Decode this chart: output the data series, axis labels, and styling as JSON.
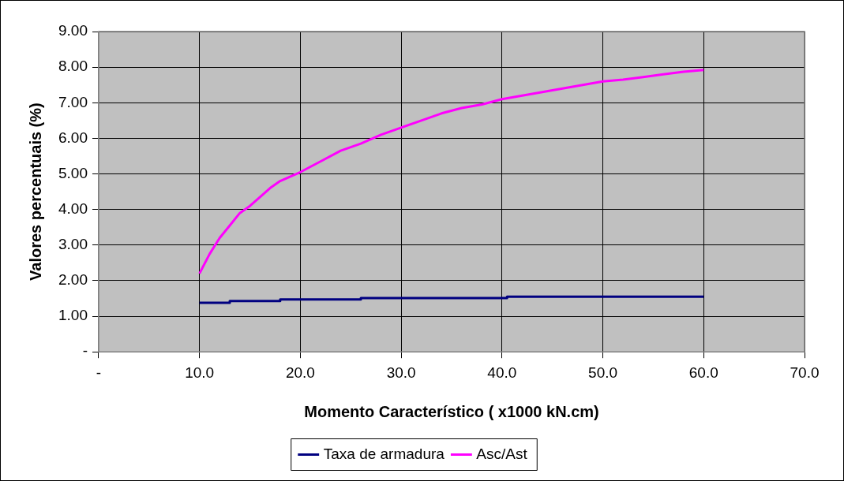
{
  "chart_data": {
    "type": "line",
    "xlabel": "Momento Característico ( x1000 kN.cm)",
    "ylabel": "Valores percentuais (%)",
    "xlim": [
      0,
      70
    ],
    "xticks": [
      {
        "value": 0,
        "label": "-"
      },
      {
        "value": 10,
        "label": "10.0"
      },
      {
        "value": 20,
        "label": "20.0"
      },
      {
        "value": 30,
        "label": "30.0"
      },
      {
        "value": 40,
        "label": "40.0"
      },
      {
        "value": 50,
        "label": "50.0"
      },
      {
        "value": 60,
        "label": "60.0"
      },
      {
        "value": 70,
        "label": "70.0"
      }
    ],
    "ylim": [
      0,
      9
    ],
    "yticks": [
      {
        "value": 0,
        "label": "-"
      },
      {
        "value": 1,
        "label": "1.00"
      },
      {
        "value": 2,
        "label": "2.00"
      },
      {
        "value": 3,
        "label": "3.00"
      },
      {
        "value": 4,
        "label": "4.00"
      },
      {
        "value": 5,
        "label": "5.00"
      },
      {
        "value": 6,
        "label": "6.00"
      },
      {
        "value": 7,
        "label": "7.00"
      },
      {
        "value": 8,
        "label": "8.00"
      },
      {
        "value": 9,
        "label": "9.00"
      }
    ],
    "grid": true,
    "legend": "bottom",
    "marker": "none",
    "line_style": "solid",
    "series": [
      {
        "name": "Taxa de armadura",
        "color": "#000080",
        "x": [
          10,
          13,
          13,
          18,
          18,
          26,
          26,
          40.5,
          40.5,
          60
        ],
        "values": [
          1.38,
          1.38,
          1.43,
          1.43,
          1.47,
          1.47,
          1.51,
          1.51,
          1.55,
          1.55
        ]
      },
      {
        "name": "Asc/Ast",
        "color": "#ff00ff",
        "x": [
          10,
          11,
          12,
          13,
          14,
          15,
          16,
          17,
          18,
          20,
          22,
          24,
          26,
          28,
          30,
          32,
          34,
          36,
          38,
          40,
          42,
          44,
          46,
          48,
          50,
          52,
          54,
          56,
          58,
          60
        ],
        "values": [
          2.2,
          2.75,
          3.2,
          3.55,
          3.9,
          4.1,
          4.35,
          4.6,
          4.8,
          5.05,
          5.35,
          5.65,
          5.85,
          6.1,
          6.3,
          6.5,
          6.7,
          6.85,
          6.95,
          7.1,
          7.2,
          7.3,
          7.4,
          7.5,
          7.6,
          7.65,
          7.72,
          7.8,
          7.87,
          7.92
        ]
      }
    ]
  }
}
